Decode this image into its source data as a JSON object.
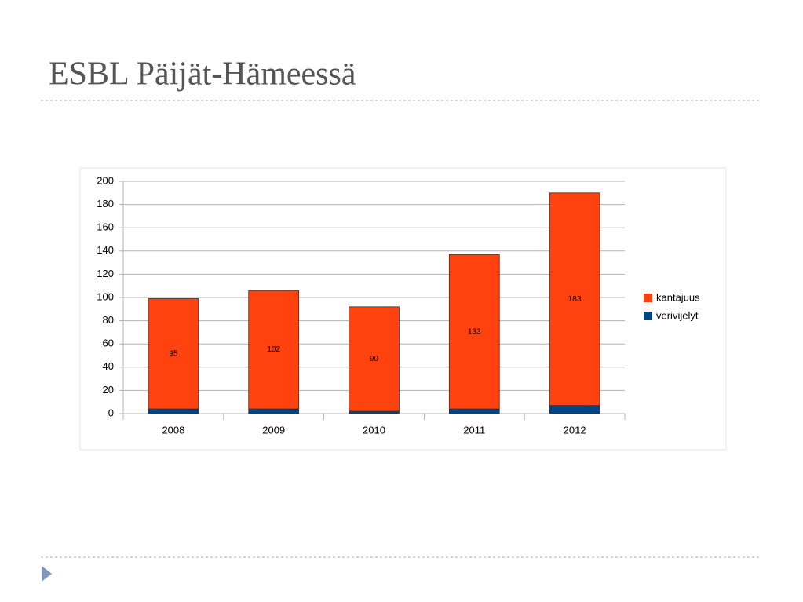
{
  "chart_data": {
    "type": "stacked_bar",
    "title": "ESBL Päijät-Hämeessä",
    "categories": [
      "2008",
      "2009",
      "2010",
      "2011",
      "2012"
    ],
    "series": [
      {
        "name": "kantajuus",
        "color": "#ff420e",
        "values": [
          95,
          102,
          90,
          133,
          183
        ],
        "data_labels": true
      },
      {
        "name": "verivijelyt",
        "color": "#004586",
        "values": [
          4,
          4,
          2,
          4,
          7
        ],
        "data_labels": false
      }
    ],
    "ylim": [
      0,
      200
    ],
    "yticks": [
      0,
      20,
      40,
      60,
      80,
      100,
      120,
      140,
      160,
      180,
      200
    ],
    "grid": true,
    "legend": "right"
  }
}
